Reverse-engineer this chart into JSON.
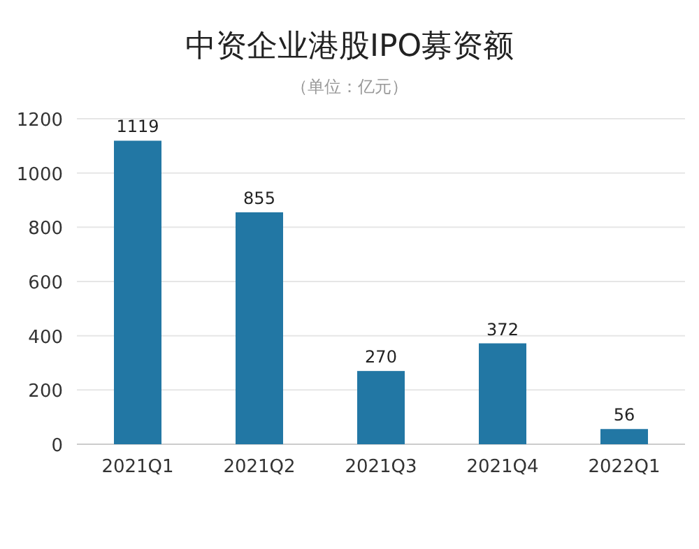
{
  "chart_data": {
    "type": "bar",
    "title": "中资企业港股IPO募资额",
    "subtitle": "（单位：亿元）",
    "categories": [
      "2021Q1",
      "2021Q2",
      "2021Q3",
      "2021Q4",
      "2022Q1"
    ],
    "values": [
      1119,
      855,
      270,
      372,
      56
    ],
    "color": "#2277a4",
    "ylim": [
      0,
      1200
    ],
    "yticks": [
      0,
      200,
      400,
      600,
      800,
      1000,
      1200
    ],
    "grid": "y",
    "data_labels": true
  }
}
